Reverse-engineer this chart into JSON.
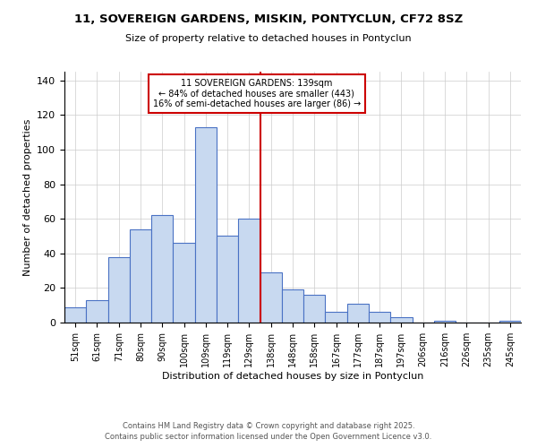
{
  "title1": "11, SOVEREIGN GARDENS, MISKIN, PONTYCLUN, CF72 8SZ",
  "title2": "Size of property relative to detached houses in Pontyclun",
  "xlabel": "Distribution of detached houses by size in Pontyclun",
  "ylabel": "Number of detached properties",
  "footer1": "Contains HM Land Registry data © Crown copyright and database right 2025.",
  "footer2": "Contains public sector information licensed under the Open Government Licence v3.0.",
  "bar_labels": [
    "51sqm",
    "61sqm",
    "71sqm",
    "80sqm",
    "90sqm",
    "100sqm",
    "109sqm",
    "119sqm",
    "129sqm",
    "138sqm",
    "148sqm",
    "158sqm",
    "167sqm",
    "177sqm",
    "187sqm",
    "197sqm",
    "206sqm",
    "216sqm",
    "226sqm",
    "235sqm",
    "245sqm"
  ],
  "bar_values": [
    9,
    13,
    38,
    54,
    62,
    46,
    113,
    50,
    60,
    29,
    19,
    16,
    6,
    11,
    6,
    3,
    0,
    1,
    0,
    0,
    1
  ],
  "bar_color": "#c8d9f0",
  "bar_edge_color": "#4a72c4",
  "reference_line_color": "#cc0000",
  "annotation_title": "11 SOVEREIGN GARDENS: 139sqm",
  "annotation_line1": "← 84% of detached houses are smaller (443)",
  "annotation_line2": "16% of semi-detached houses are larger (86) →",
  "annotation_box_edge": "#cc0000",
  "annotation_box_face": "#ffffff",
  "ylim": [
    0,
    145
  ],
  "xlim_left": -0.5,
  "xlim_right": 20.5,
  "ref_bar_index": 9
}
